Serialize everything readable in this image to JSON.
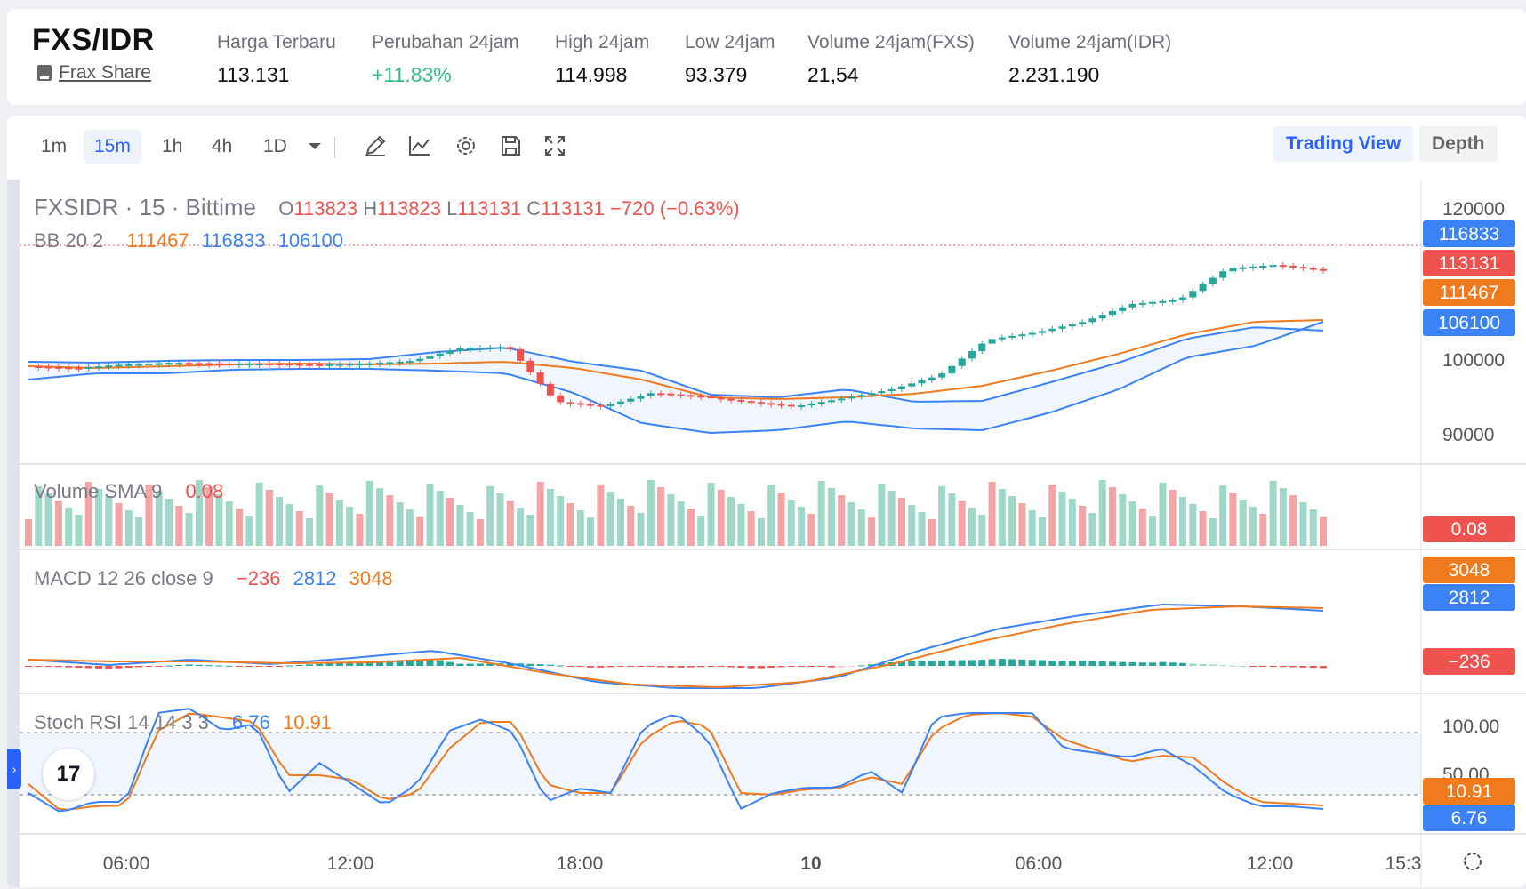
{
  "header": {
    "pair": "FXS/IDR",
    "token_name": "Frax Share",
    "stats": [
      {
        "label": "Harga Terbaru",
        "value": "113.131",
        "positive": false
      },
      {
        "label": "Perubahan 24jam",
        "value": "+11.83%",
        "positive": true
      },
      {
        "label": "High 24jam",
        "value": "114.998",
        "positive": false
      },
      {
        "label": "Low 24jam",
        "value": "93.379",
        "positive": false
      },
      {
        "label": "Volume 24jam(FXS)",
        "value": "21,54",
        "positive": false
      },
      {
        "label": "Volume 24jam(IDR)",
        "value": "2.231.190",
        "positive": false
      }
    ]
  },
  "toolbar": {
    "timeframes": [
      "1m",
      "15m",
      "1h",
      "4h",
      "1D"
    ],
    "active_timeframe": "15m",
    "icons": [
      "chevron-down-icon",
      "pencil-icon",
      "line-chart-icon",
      "gear-icon",
      "save-icon",
      "fullscreen-icon"
    ],
    "trading_view_label": "Trading View",
    "depth_label": "Depth"
  },
  "chart": {
    "symbol": "FXSIDR",
    "sep1": "·",
    "interval": "15",
    "sep2": "·",
    "exchange": "Bittime",
    "ohlc": {
      "o_label": "O",
      "o": "113823",
      "h_label": "H",
      "h": "113823",
      "l_label": "L",
      "l": "113131",
      "c_label": "C",
      "c": "113131",
      "change": "−720 (−0.63%)"
    },
    "bb_label": "BB 20 2",
    "bb_values": {
      "basis": "111467",
      "upper": "116833",
      "lower": "106100"
    },
    "volume_label": "Volume SMA 9",
    "volume_value": "0.08",
    "macd_label": "MACD 12 26 close 9",
    "macd_values": {
      "hist": "−236",
      "macd": "2812",
      "signal": "3048"
    },
    "stoch_label": "Stoch RSI 14 14 3 3",
    "stoch_values": {
      "k": "6.76",
      "d": "10.91"
    },
    "price_axis": [
      "120000",
      "100000",
      "90000"
    ],
    "stoch_axis": [
      "100.00",
      "50.00"
    ],
    "badges": {
      "bb_upper": "116833",
      "last_price": "113131",
      "bb_basis": "111467",
      "bb_lower": "106100",
      "volume": "0.08",
      "macd_signal": "3048",
      "macd": "2812",
      "macd_hist": "−236",
      "stoch_d": "10.91",
      "stoch_k": "6.76"
    },
    "time_axis": [
      "06:00",
      "12:00",
      "18:00",
      "10",
      "06:00",
      "12:00",
      "15:3"
    ],
    "tv_logo": "17",
    "colors": {
      "up": "#26a69a",
      "down": "#ef5350",
      "bb": "#3b82f6",
      "basis": "#f07a1e",
      "macd": "#3b82f6",
      "signal": "#f07a1e"
    }
  }
}
